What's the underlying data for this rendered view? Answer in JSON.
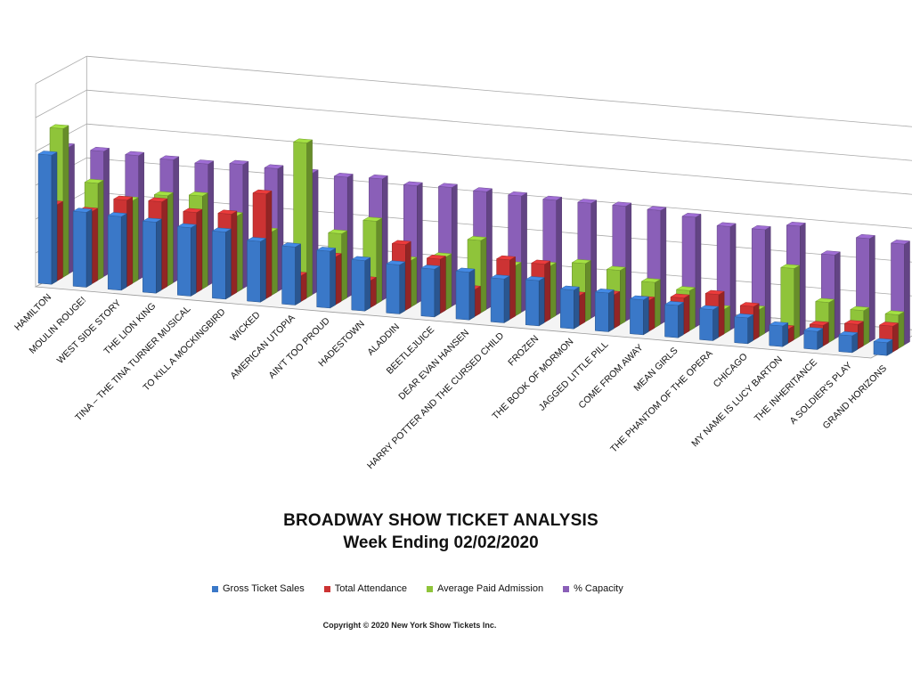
{
  "chart_data": {
    "type": "bar",
    "title": "BROADWAY SHOW TICKET ANALYSIS",
    "subtitle": "Week Ending 02/02/2020",
    "categories": [
      "HAMILTON",
      "MOULIN ROUGE!",
      "WEST SIDE STORY",
      "THE LION KING",
      "TINA – THE TINA TURNER MUSICAL",
      "TO KILL A MOCKINGBIRD",
      "WICKED",
      "AMERICAN UTOPIA",
      "AIN'T TOO PROUD",
      "HADESTOWN",
      "ALADDIN",
      "BEETLEJUICE",
      "DEAR EVAN HANSEN",
      "HARRY POTTER AND THE CURSED CHILD",
      "FROZEN",
      "THE BOOK OF MORMON",
      "JAGGED LITTLE PILL",
      "COME FROM AWAY",
      "MEAN GIRLS",
      "THE PHANTOM OF THE OPERA",
      "CHICAGO",
      "MY NAME IS LUCY BARTON",
      "THE INHERITANCE",
      "A SOLDIER'S PLAY",
      "GRAND HORIZONS"
    ],
    "series": [
      {
        "name": "Gross Ticket Sales",
        "color": "#3a78c8",
        "values": [
          100,
          58,
          57,
          55,
          53,
          52,
          47,
          45,
          44,
          39,
          38,
          37,
          37,
          34,
          35,
          30,
          30,
          27,
          25,
          24,
          20,
          16,
          14,
          13,
          10
        ]
      },
      {
        "name": "Total Attendance",
        "color": "#cc3333",
        "values": [
          59,
          56,
          67,
          68,
          62,
          63,
          81,
          20,
          37,
          21,
          51,
          42,
          21,
          46,
          45,
          23,
          26,
          24,
          28,
          33,
          26,
          11,
          16,
          19,
          20
        ]
      },
      {
        "name": "Average Paid Admission",
        "color": "#8fc43a",
        "values": [
          115,
          75,
          64,
          70,
          72,
          59,
          49,
          120,
          52,
          64,
          36,
          41,
          56,
          39,
          41,
          45,
          42,
          35,
          31,
          19,
          21,
          55,
          31,
          27,
          26
        ]
      },
      {
        "name": "% Capacity",
        "color": "#8a5fb8",
        "values": [
          98,
          97,
          96,
          95,
          94,
          96,
          95,
          94,
          93,
          94,
          91,
          92,
          91,
          90,
          89,
          89,
          89,
          88,
          85,
          80,
          80,
          85,
          65,
          80,
          78
        ]
      }
    ]
  },
  "copyright": "Copyright © 2020 New York Show Tickets Inc."
}
